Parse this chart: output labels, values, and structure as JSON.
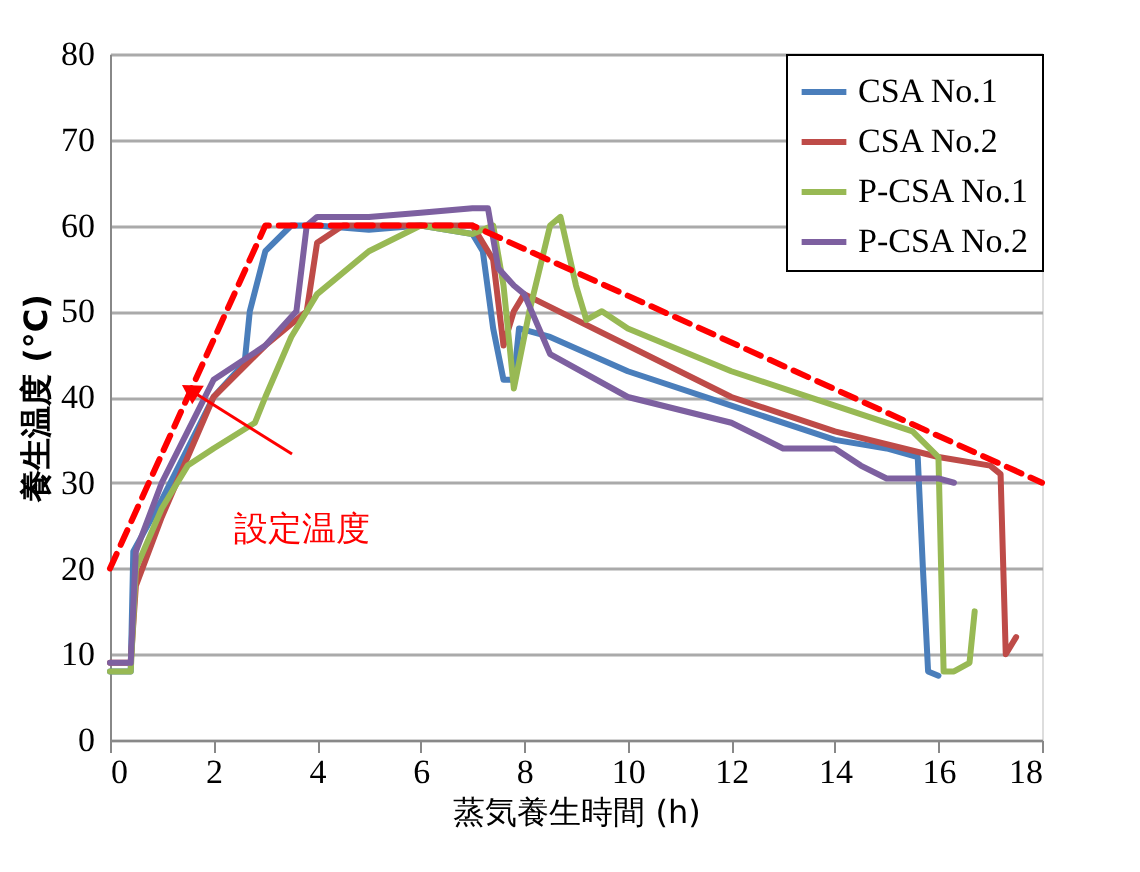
{
  "chart_data": {
    "type": "line",
    "xlabel": "蒸気養生時間 (h)",
    "ylabel": "養生温度 (°C)",
    "xlim": [
      0,
      18
    ],
    "xticks": [
      0,
      2,
      4,
      6,
      8,
      10,
      12,
      14,
      16,
      18
    ],
    "ylim": [
      0,
      80
    ],
    "yticks": [
      0,
      10,
      20,
      30,
      40,
      50,
      60,
      70,
      80
    ],
    "grid": "y",
    "legend": "top right",
    "marker": "none",
    "series": [
      {
        "name": "CSA No.1",
        "color": "#4a7ebb",
        "x": [
          0,
          0.4,
          0.45,
          1,
          2,
          2.6,
          2.7,
          3,
          3.5,
          4,
          5,
          6,
          7,
          7.2,
          7.4,
          7.6,
          7.8,
          7.9,
          8.5,
          10,
          12,
          14,
          15,
          15.6,
          15.7,
          15.8,
          16
        ],
        "values": [
          8,
          8,
          22,
          28,
          40,
          44,
          50,
          57,
          60,
          60,
          59.5,
          60,
          59,
          57,
          48,
          42,
          42,
          48,
          47,
          43,
          39,
          35,
          34,
          33,
          20,
          8,
          7.5
        ]
      },
      {
        "name": "CSA No.2",
        "color": "#be4b48",
        "x": [
          0,
          0.4,
          0.5,
          1,
          1.5,
          2,
          3,
          3.8,
          4,
          4.5,
          5,
          6,
          7,
          7.4,
          7.6,
          7.8,
          8,
          10,
          12,
          14,
          16,
          17,
          17.2,
          17.3,
          17.5
        ],
        "values": [
          9,
          9,
          18,
          26,
          33,
          40,
          46,
          50,
          58,
          60,
          60,
          60,
          60,
          56,
          46,
          50,
          52,
          46,
          40,
          36,
          33,
          32,
          31,
          10,
          12
        ]
      },
      {
        "name": "P-CSA No.1",
        "color": "#98b954",
        "x": [
          0,
          0.4,
          0.5,
          1,
          1.5,
          2,
          2.8,
          3,
          3.5,
          4,
          5,
          6,
          7,
          7.4,
          7.6,
          7.8,
          8.1,
          8.5,
          8.7,
          9,
          9.2,
          9.5,
          10,
          12,
          14,
          15.5,
          16,
          16.1,
          16.3,
          16.6,
          16.7
        ],
        "values": [
          8,
          8,
          20,
          27,
          32,
          34,
          37,
          40,
          47,
          52,
          57,
          60,
          59,
          60,
          53,
          41,
          50,
          60,
          61,
          53,
          49,
          50,
          48,
          43,
          39,
          36,
          33,
          8,
          8,
          9,
          15
        ]
      },
      {
        "name": "P-CSA No.2",
        "color": "#7d60a0",
        "x": [
          0,
          0.4,
          0.5,
          1,
          1.5,
          2,
          3,
          3.6,
          3.8,
          4,
          5,
          6,
          7,
          7.3,
          7.5,
          7.8,
          8,
          8.5,
          10,
          12,
          13,
          14,
          14.5,
          15,
          16,
          16.3
        ],
        "values": [
          9,
          9,
          22,
          30,
          36,
          42,
          46,
          50,
          60,
          61,
          61,
          61.5,
          62,
          62,
          55,
          53,
          52,
          45,
          40,
          37,
          34,
          34,
          32,
          30.5,
          30.5,
          30
        ]
      },
      {
        "color": "#ff0000",
        "line_style": "dashed",
        "x": [
          0,
          3,
          7,
          18
        ],
        "values": [
          20,
          60,
          60,
          30
        ]
      }
    ],
    "annotations": [
      "設定温度"
    ]
  }
}
